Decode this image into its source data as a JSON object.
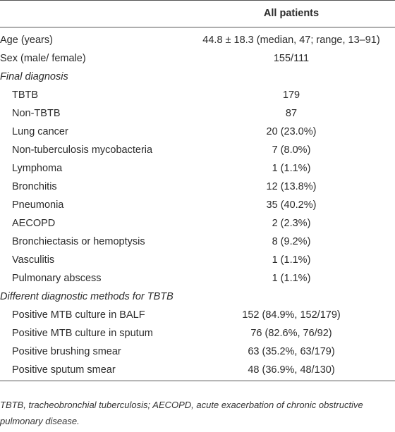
{
  "table": {
    "column_header": "All patients",
    "rows": [
      {
        "label": "Age (years)",
        "value": "44.8 ± 18.3 (median, 47; range, 13–91)"
      },
      {
        "label": "Sex (male/ female)",
        "value": "155/111"
      }
    ],
    "sections": [
      {
        "title": "Final diagnosis",
        "rows": [
          {
            "label": "TBTB",
            "value": "179"
          },
          {
            "label": "Non-TBTB",
            "value": "87"
          },
          {
            "label": "Lung cancer",
            "value": "20 (23.0%)"
          },
          {
            "label": "Non-tuberculosis mycobacteria",
            "value": "7 (8.0%)"
          },
          {
            "label": "Lymphoma",
            "value": "1 (1.1%)"
          },
          {
            "label": "Bronchitis",
            "value": "12 (13.8%)"
          },
          {
            "label": "Pneumonia",
            "value": "35 (40.2%)"
          },
          {
            "label": "AECOPD",
            "value": "2 (2.3%)"
          },
          {
            "label": "Bronchiectasis or hemoptysis",
            "value": "8 (9.2%)"
          },
          {
            "label": "Vasculitis",
            "value": "1 (1.1%)"
          },
          {
            "label": "Pulmonary abscess",
            "value": "1 (1.1%)"
          }
        ]
      },
      {
        "title": "Different diagnostic methods for TBTB",
        "rows": [
          {
            "label": "Positive MTB culture in BALF",
            "value": "152 (84.9%, 152/179)"
          },
          {
            "label": "Positive MTB culture in sputum",
            "value": "76 (82.6%, 76/92)"
          },
          {
            "label": "Positive brushing smear",
            "value": "63 (35.2%, 63/179)"
          },
          {
            "label": "Positive sputum smear",
            "value": "48 (36.9%, 48/130)"
          }
        ]
      }
    ]
  },
  "footnote": "TBTB, tracheobronchial tuberculosis; AECOPD, acute exacerbation of chronic obstructive pulmonary disease."
}
